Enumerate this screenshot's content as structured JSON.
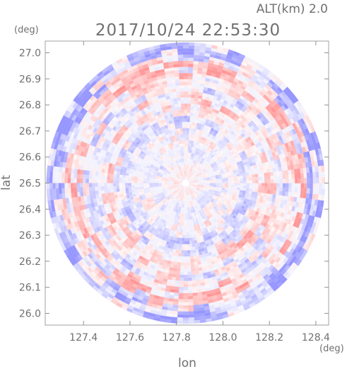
{
  "header": {
    "altitude_label": "ALT(km) 2.0",
    "timestamp": "2017/10/24 22:53:30"
  },
  "colors": {
    "positive": "#ff9c9c",
    "negative": "#9c9cff",
    "axis": "#909090",
    "text": "#707070"
  },
  "chart_data": {
    "type": "heatmap",
    "title": "2017/10/24 22:53:30",
    "subtitle": "ALT(km) 2.0",
    "xlabel": "lon",
    "ylabel": "lat",
    "x_unit": "(deg)",
    "y_unit": "(deg)",
    "xlim": [
      127.235,
      128.455
    ],
    "ylim": [
      25.955,
      27.045
    ],
    "x_ticks": [
      {
        "value": 127.4,
        "label": "127.4"
      },
      {
        "value": 127.6,
        "label": "127.6"
      },
      {
        "value": 127.8,
        "label": "127.8"
      },
      {
        "value": 128.0,
        "label": "128.0"
      },
      {
        "value": 128.2,
        "label": "128.2"
      },
      {
        "value": 128.4,
        "label": "128.4"
      }
    ],
    "y_ticks": [
      {
        "value": 26.0,
        "label": "26.0"
      },
      {
        "value": 26.1,
        "label": "26.1"
      },
      {
        "value": 26.2,
        "label": "26.2"
      },
      {
        "value": 26.3,
        "label": "26.3"
      },
      {
        "value": 26.4,
        "label": "26.4"
      },
      {
        "value": 26.5,
        "label": "26.5"
      },
      {
        "value": 26.6,
        "label": "26.6"
      },
      {
        "value": 26.7,
        "label": "26.7"
      },
      {
        "value": 26.8,
        "label": "26.8"
      },
      {
        "value": 26.9,
        "label": "26.9"
      },
      {
        "value": 27.0,
        "label": "27.0"
      }
    ],
    "radar_center": {
      "lon": 127.84,
      "lat": 26.5
    },
    "radar_range_deg": {
      "lon": 0.6,
      "lat": 0.54
    },
    "field": "polar scan, red/blue diverging pattern"
  }
}
